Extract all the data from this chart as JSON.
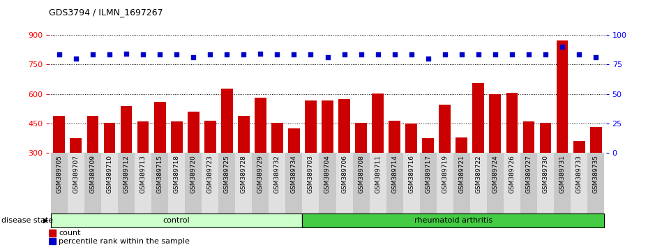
{
  "title": "GDS3794 / ILMN_1697267",
  "samples": [
    "GSM389705",
    "GSM389707",
    "GSM389709",
    "GSM389710",
    "GSM389712",
    "GSM389713",
    "GSM389715",
    "GSM389718",
    "GSM389720",
    "GSM389723",
    "GSM389725",
    "GSM389728",
    "GSM389729",
    "GSM389732",
    "GSM389734",
    "GSM389703",
    "GSM389704",
    "GSM389706",
    "GSM389708",
    "GSM389711",
    "GSM389714",
    "GSM389716",
    "GSM389717",
    "GSM389719",
    "GSM389721",
    "GSM389722",
    "GSM389724",
    "GSM389726",
    "GSM389727",
    "GSM389730",
    "GSM389731",
    "GSM389733",
    "GSM389735"
  ],
  "bar_values": [
    490,
    375,
    490,
    455,
    540,
    460,
    560,
    462,
    510,
    465,
    625,
    490,
    580,
    455,
    425,
    565,
    565,
    575,
    455,
    603,
    463,
    450,
    375,
    545,
    380,
    655,
    600,
    605,
    460,
    455,
    870,
    360,
    432
  ],
  "percentile_values": [
    83,
    80,
    83,
    83,
    84,
    83,
    83,
    83,
    81,
    83,
    83,
    83,
    84,
    83,
    83,
    83,
    81,
    83,
    83,
    83,
    83,
    83,
    80,
    83,
    83,
    83,
    83,
    83,
    83,
    83,
    90,
    83,
    81
  ],
  "control_count": 15,
  "rheumatoid_count": 18,
  "bar_color": "#cc0000",
  "dot_color": "#0000cc",
  "ylim_left": [
    300,
    900
  ],
  "ylim_right": [
    0,
    100
  ],
  "yticks_left": [
    300,
    450,
    600,
    750,
    900
  ],
  "yticks_right": [
    0,
    25,
    50,
    75,
    100
  ],
  "control_label": "control",
  "ra_label": "rheumatoid arthritis",
  "disease_state_label": "disease state",
  "legend_count_label": "count",
  "legend_pct_label": "percentile rank within the sample",
  "control_color": "#ccffcc",
  "ra_color": "#44cc44",
  "tick_bg_even": "#c8c8c8",
  "tick_bg_odd": "#e0e0e0"
}
